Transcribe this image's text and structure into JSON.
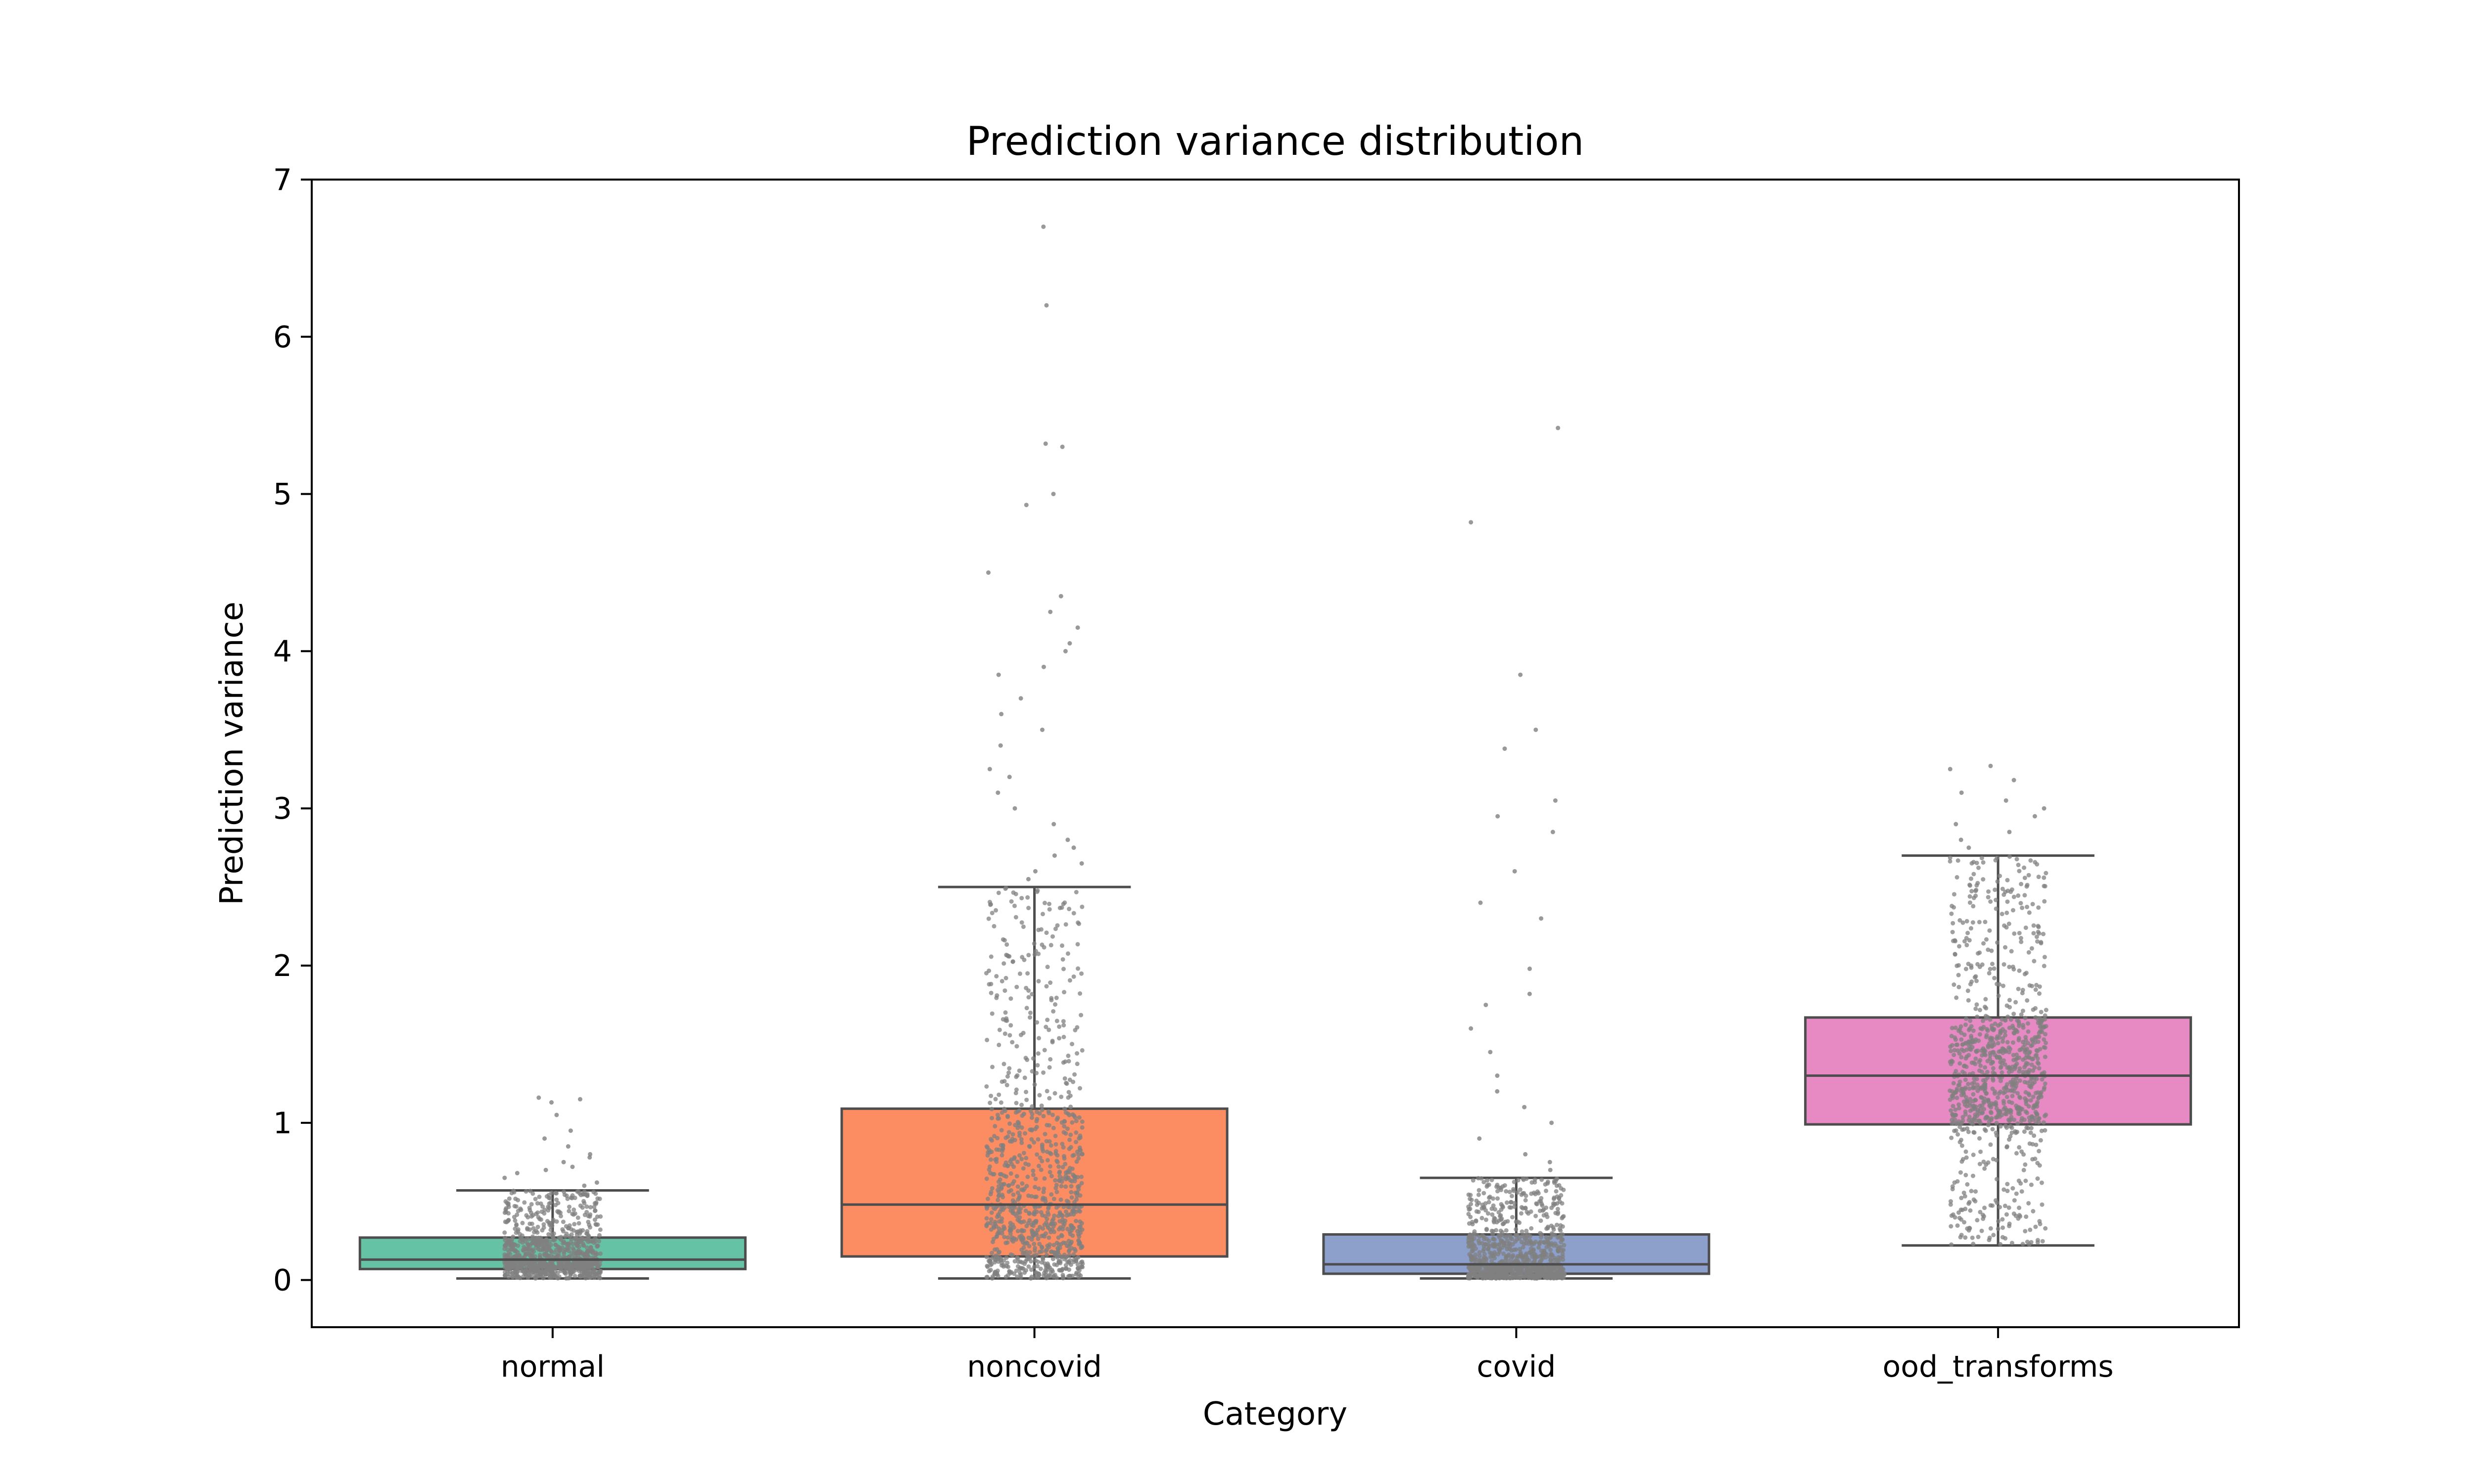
{
  "chart_data": {
    "type": "box",
    "title": "Prediction variance distribution",
    "xlabel": "Category",
    "ylabel": "Prediction variance",
    "ylim": [
      -0.3,
      7.0
    ],
    "yticks": [
      0,
      1,
      2,
      3,
      4,
      5,
      6,
      7
    ],
    "grid": false,
    "legend": "none",
    "point_color": "#808080",
    "line_color": "#4d4d4d",
    "categories": [
      "normal",
      "noncovid",
      "covid",
      "ood_transforms"
    ],
    "boxes": [
      {
        "category": "normal",
        "color": "#66c2a5",
        "whisker_low": 0.01,
        "q1": 0.07,
        "median": 0.13,
        "q3": 0.27,
        "whisker_high": 0.57,
        "outliers": [
          0.6,
          0.62,
          0.65,
          0.68,
          0.7,
          0.72,
          0.75,
          0.78,
          0.8,
          0.85,
          0.9,
          0.95,
          1.05,
          1.13,
          1.15,
          1.16
        ]
      },
      {
        "category": "noncovid",
        "color": "#fc8d62",
        "whisker_low": 0.01,
        "q1": 0.15,
        "median": 0.48,
        "q3": 1.09,
        "whisker_high": 2.5,
        "outliers": [
          2.55,
          2.6,
          2.65,
          2.7,
          2.75,
          2.8,
          2.9,
          3.0,
          3.1,
          3.2,
          3.25,
          3.4,
          3.5,
          3.6,
          3.7,
          3.85,
          3.9,
          4.0,
          4.05,
          4.15,
          4.25,
          4.35,
          4.5,
          4.93,
          5.0,
          5.3,
          5.32,
          6.2,
          6.7
        ]
      },
      {
        "category": "covid",
        "color": "#8da0cb",
        "whisker_low": 0.01,
        "q1": 0.04,
        "median": 0.1,
        "q3": 0.29,
        "whisker_high": 0.65,
        "outliers": [
          0.7,
          0.75,
          0.8,
          0.9,
          1.0,
          1.1,
          1.2,
          1.3,
          1.45,
          1.6,
          1.75,
          1.82,
          1.98,
          2.3,
          2.4,
          2.6,
          2.85,
          2.95,
          3.05,
          3.38,
          3.5,
          3.85,
          4.82,
          5.42
        ]
      },
      {
        "category": "ood_transforms",
        "color": "#e78ac3",
        "whisker_low": 0.22,
        "q1": 0.99,
        "median": 1.3,
        "q3": 1.67,
        "whisker_high": 2.7,
        "outliers": [
          2.75,
          2.8,
          2.85,
          2.9,
          2.95,
          3.0,
          3.05,
          3.1,
          3.18,
          3.25,
          3.27
        ]
      }
    ]
  }
}
